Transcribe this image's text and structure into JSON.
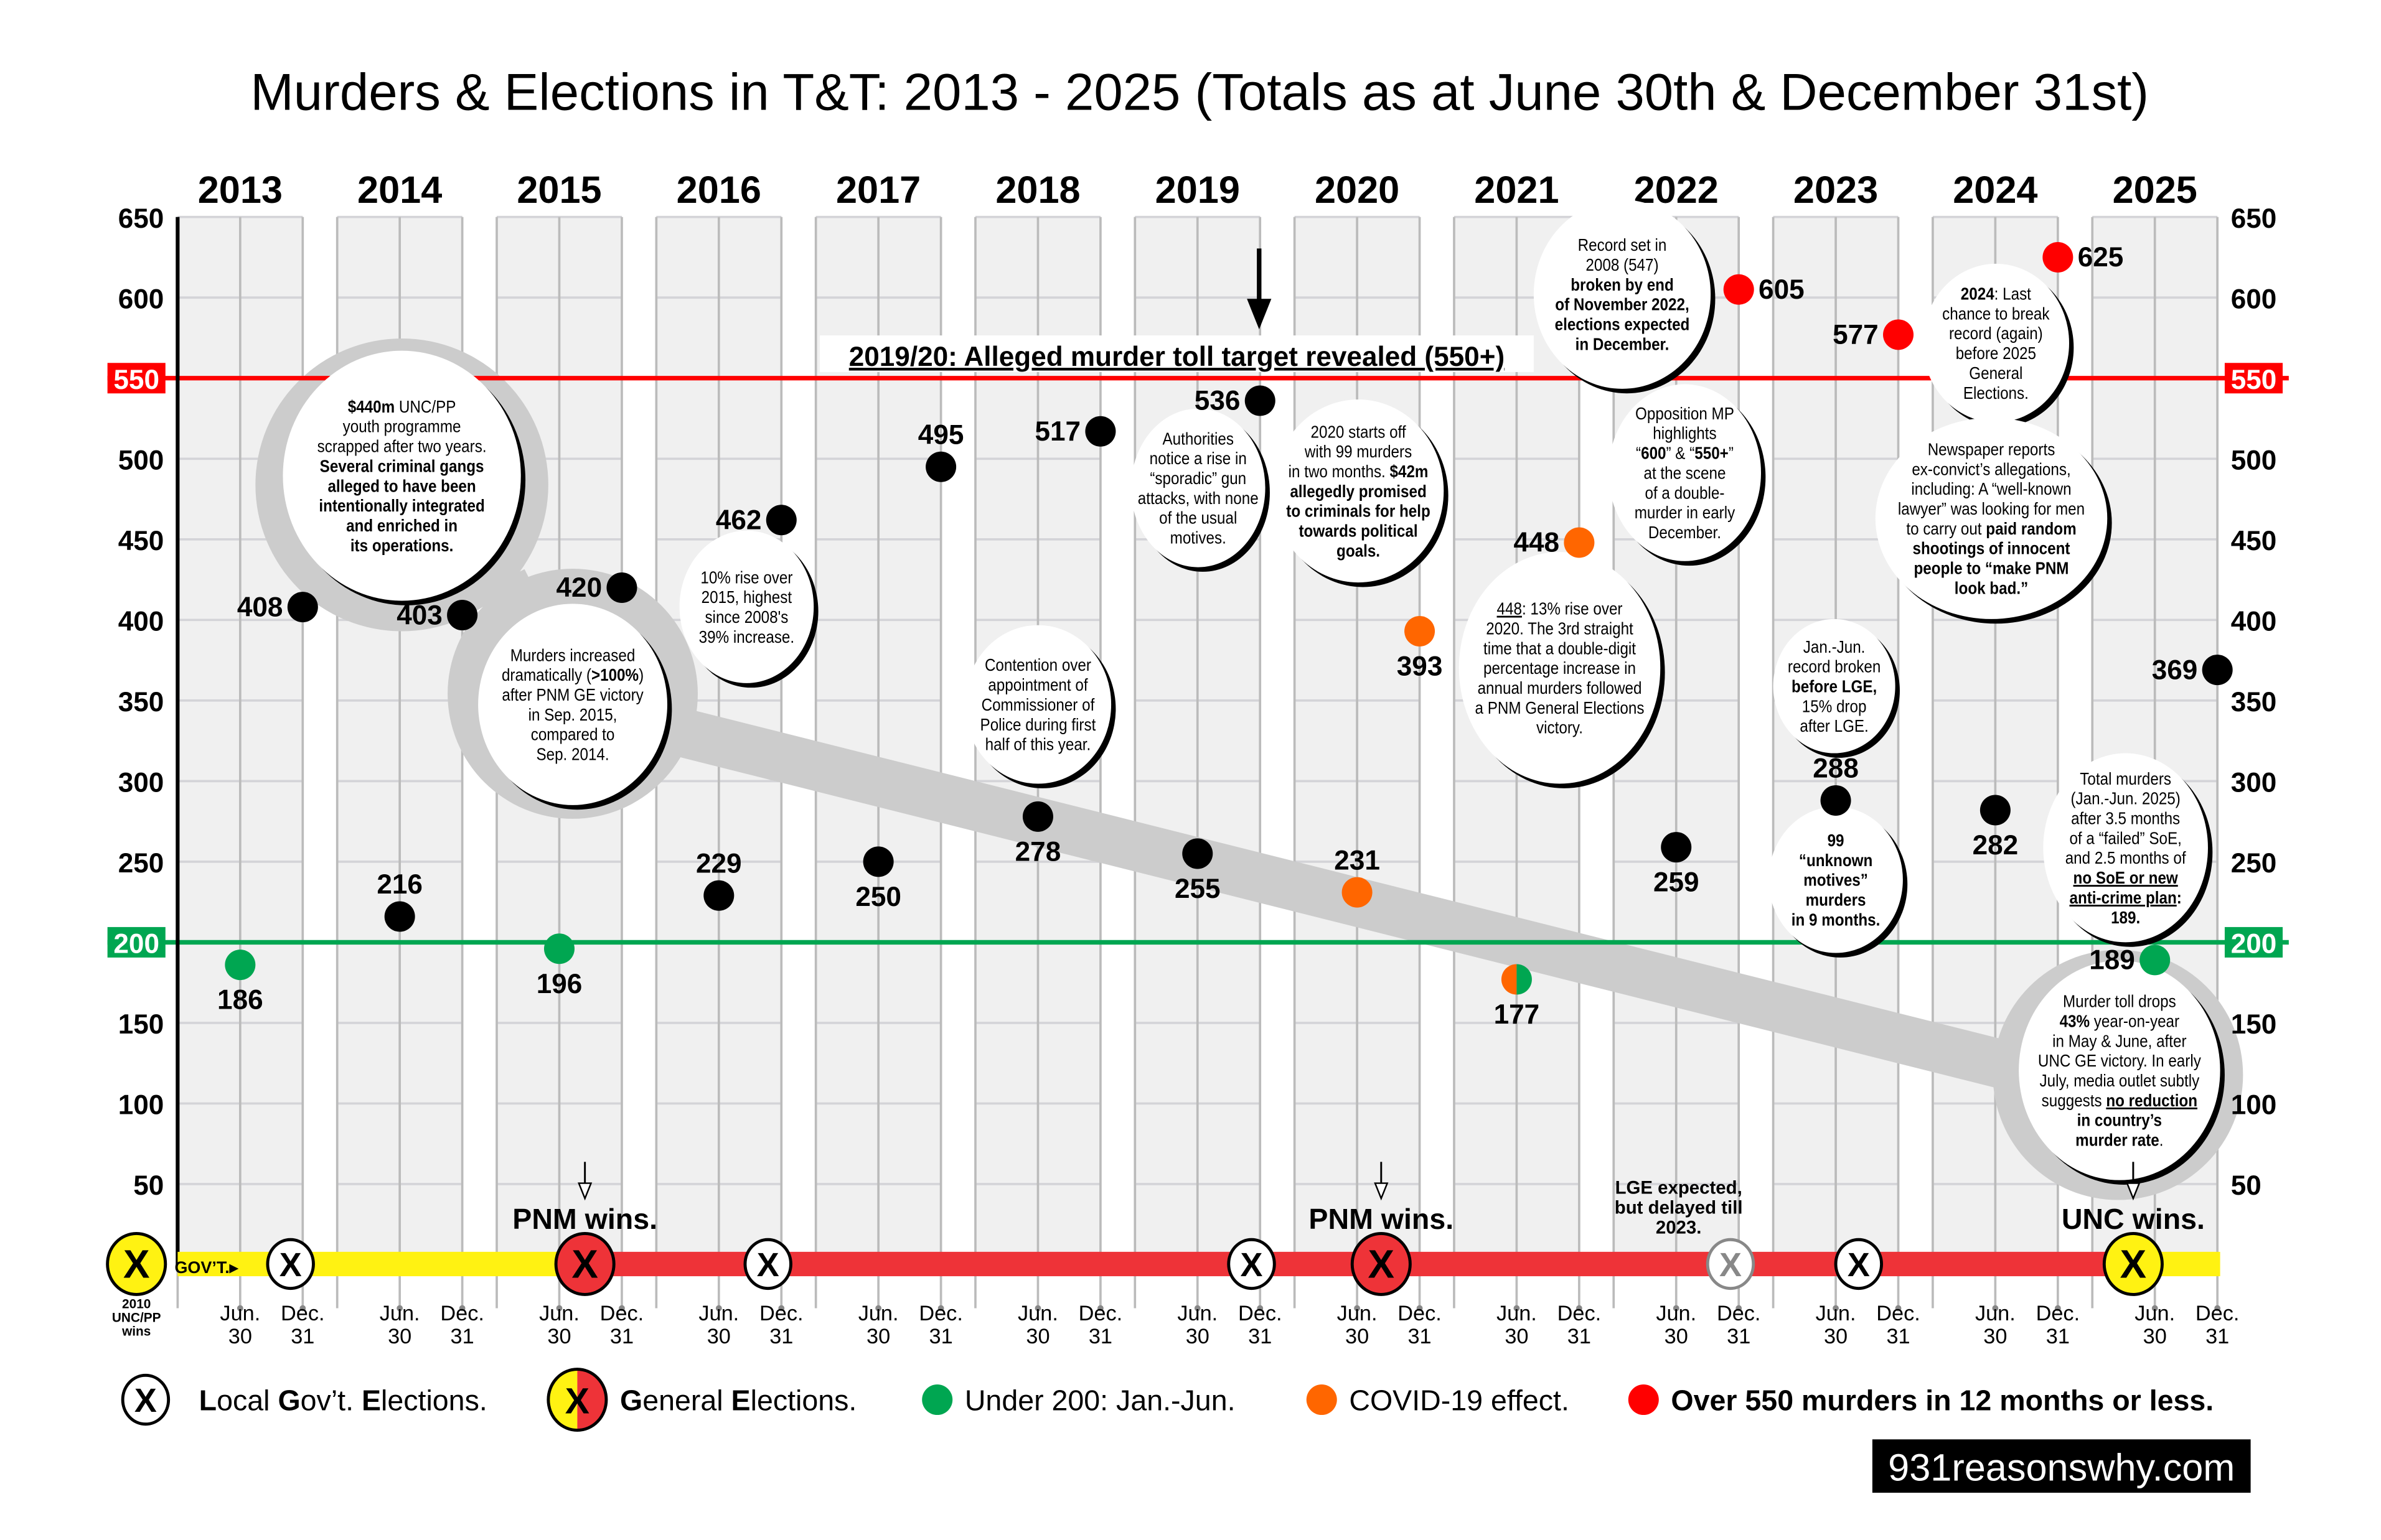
{
  "title": "Murders & Elections in T&T:  2013 - 2025 (Totals as at June 30th & December 31st)",
  "years": [
    "2013",
    "2014",
    "2015",
    "2016",
    "2017",
    "2018",
    "2019",
    "2020",
    "2021",
    "2022",
    "2023",
    "2024",
    "2025"
  ],
  "x_tick_labels": {
    "jun": [
      "Jun.",
      "30"
    ],
    "dec": [
      "Dec.",
      "31"
    ]
  },
  "colors": {
    "normal": "#000000",
    "under_200": "#00a651",
    "covid": "#ff6600",
    "over_550": "#ff0000",
    "pnm_red": "#ee3338",
    "unc_yellow": "#fff212",
    "grid_band": "#f0f0f0",
    "ring_gray": "#cccccc"
  },
  "chart_data": {
    "type": "scatter",
    "title": "Murders & Elections in T&T:  2013 - 2025 (Totals as at June 30th & December 31st)",
    "y_range": [
      0,
      650
    ],
    "y_ticks": [
      50,
      100,
      150,
      200,
      250,
      300,
      350,
      400,
      450,
      500,
      550,
      600,
      650
    ],
    "grid": true,
    "reference_lines": [
      {
        "value": 550,
        "label": "550",
        "color": "#ff0000"
      },
      {
        "value": 200,
        "label": "200",
        "color": "#00a651"
      }
    ],
    "points": [
      {
        "year": "2013",
        "period": "Jun. 30",
        "value": 186,
        "category": "under_200"
      },
      {
        "year": "2013",
        "period": "Dec. 31",
        "value": 408,
        "category": "normal"
      },
      {
        "year": "2014",
        "period": "Jun. 30",
        "value": 216,
        "category": "normal"
      },
      {
        "year": "2014",
        "period": "Dec. 31",
        "value": 403,
        "category": "normal"
      },
      {
        "year": "2015",
        "period": "Jun. 30",
        "value": 196,
        "category": "under_200"
      },
      {
        "year": "2015",
        "period": "Dec. 31",
        "value": 420,
        "category": "normal"
      },
      {
        "year": "2016",
        "period": "Jun. 30",
        "value": 229,
        "category": "normal"
      },
      {
        "year": "2016",
        "period": "Dec. 31",
        "value": 462,
        "category": "normal"
      },
      {
        "year": "2017",
        "period": "Jun. 30",
        "value": 250,
        "category": "normal"
      },
      {
        "year": "2017",
        "period": "Dec. 31",
        "value": 495,
        "category": "normal"
      },
      {
        "year": "2018",
        "period": "Jun. 30",
        "value": 278,
        "category": "normal"
      },
      {
        "year": "2018",
        "period": "Dec. 31",
        "value": 517,
        "category": "normal"
      },
      {
        "year": "2019",
        "period": "Jun. 30",
        "value": 255,
        "category": "normal"
      },
      {
        "year": "2019",
        "period": "Dec. 31",
        "value": 536,
        "category": "normal"
      },
      {
        "year": "2020",
        "period": "Jun. 30",
        "value": 231,
        "category": "covid"
      },
      {
        "year": "2020",
        "period": "Dec. 31",
        "value": 393,
        "category": "covid"
      },
      {
        "year": "2021",
        "period": "Jun. 30",
        "value": 177,
        "category": "under_200_covid"
      },
      {
        "year": "2021",
        "period": "Dec. 31",
        "value": 448,
        "category": "covid"
      },
      {
        "year": "2022",
        "period": "Jun. 30",
        "value": 259,
        "category": "normal"
      },
      {
        "year": "2022",
        "period": "Dec. 31",
        "value": 605,
        "category": "over_550"
      },
      {
        "year": "2023",
        "period": "Jun. 30",
        "value": 288,
        "category": "normal"
      },
      {
        "year": "2023",
        "period": "Dec. 31",
        "value": 577,
        "category": "over_550"
      },
      {
        "year": "2024",
        "period": "Jun. 30",
        "value": 282,
        "category": "normal"
      },
      {
        "year": "2024",
        "period": "Dec. 31",
        "value": 625,
        "category": "over_550"
      },
      {
        "year": "2025",
        "period": "Jun. 30",
        "value": 189,
        "category": "under_200"
      },
      {
        "year": "2025",
        "period": "Dec. 31",
        "value": 369,
        "category": "normal"
      }
    ]
  },
  "banner": "2019/20: Alleged murder toll target revealed (550+)",
  "annotations": [
    {
      "lines": [
        [
          {
            "t": "$440m",
            "b": 1
          },
          {
            "t": " UNC/PP"
          }
        ],
        [
          {
            "t": "youth programme"
          }
        ],
        [
          {
            "t": "scrapped after two years."
          }
        ],
        [
          {
            "t": "Several criminal gangs",
            "b": 1
          }
        ],
        [
          {
            "t": "alleged to have been",
            "b": 1
          }
        ],
        [
          {
            "t": "intentionally integrated",
            "b": 1
          }
        ],
        [
          {
            "t": "and enriched in",
            "b": 1
          }
        ],
        [
          {
            "t": "its operations.",
            "b": 1
          }
        ]
      ]
    },
    {
      "lines": [
        [
          {
            "t": "Murders increased"
          }
        ],
        [
          {
            "t": "dramatically ("
          },
          {
            "t": ">100%",
            "b": 1
          },
          {
            "t": ")"
          }
        ],
        [
          {
            "t": "after PNM GE victory"
          }
        ],
        [
          {
            "t": "in Sep. 2015,"
          }
        ],
        [
          {
            "t": "compared to"
          }
        ],
        [
          {
            "t": "Sep. 2014."
          }
        ]
      ]
    },
    {
      "lines": [
        [
          {
            "t": "10% rise over"
          }
        ],
        [
          {
            "t": "2015, highest"
          }
        ],
        [
          {
            "t": "since 2008's"
          }
        ],
        [
          {
            "t": "39% increase."
          }
        ]
      ]
    },
    {
      "lines": [
        [
          {
            "t": "Contention over"
          }
        ],
        [
          {
            "t": "appointment of"
          }
        ],
        [
          {
            "t": "Commissioner of"
          }
        ],
        [
          {
            "t": "Police during first"
          }
        ],
        [
          {
            "t": "half of this year."
          }
        ]
      ]
    },
    {
      "lines": [
        [
          {
            "t": "Authorities"
          }
        ],
        [
          {
            "t": "notice a rise in"
          }
        ],
        [
          {
            "t": "“sporadic” gun"
          }
        ],
        [
          {
            "t": "attacks, with none"
          }
        ],
        [
          {
            "t": "of the usual"
          }
        ],
        [
          {
            "t": "motives."
          }
        ]
      ]
    },
    {
      "lines": [
        [
          {
            "t": "2020 starts off"
          }
        ],
        [
          {
            "t": "with 99 murders"
          }
        ],
        [
          {
            "t": "in two months. "
          },
          {
            "t": "$42m",
            "b": 1
          }
        ],
        [
          {
            "t": "allegedly promised",
            "b": 1
          }
        ],
        [
          {
            "t": "to criminals for help",
            "b": 1
          }
        ],
        [
          {
            "t": "towards political",
            "b": 1
          }
        ],
        [
          {
            "t": "goals.",
            "b": 1
          }
        ]
      ]
    },
    {
      "lines": [
        [
          {
            "t": "448",
            "u": 1
          },
          {
            "t": ": 13% rise over"
          }
        ],
        [
          {
            "t": "2020. The 3rd straight"
          }
        ],
        [
          {
            "t": "time that a double-digit"
          }
        ],
        [
          {
            "t": "percentage increase in"
          }
        ],
        [
          {
            "t": "annual murders followed"
          }
        ],
        [
          {
            "t": "a PNM General Elections"
          }
        ],
        [
          {
            "t": "victory."
          }
        ]
      ]
    },
    {
      "lines": [
        [
          {
            "t": "Record set in"
          }
        ],
        [
          {
            "t": "2008 (547)"
          }
        ],
        [
          {
            "t": "broken by end",
            "b": 1
          }
        ],
        [
          {
            "t": "of November 2022,",
            "b": 1
          }
        ],
        [
          {
            "t": "elections expected",
            "b": 1
          }
        ],
        [
          {
            "t": "in December.",
            "b": 1
          }
        ]
      ]
    },
    {
      "lines": [
        [
          {
            "t": "Opposition MP"
          }
        ],
        [
          {
            "t": "highlights"
          }
        ],
        [
          {
            "t": "“"
          },
          {
            "t": "600",
            "b": 1
          },
          {
            "t": "” & “"
          },
          {
            "t": "550+",
            "b": 1
          },
          {
            "t": "”"
          }
        ],
        [
          {
            "t": "at the scene"
          }
        ],
        [
          {
            "t": "of a double-"
          }
        ],
        [
          {
            "t": "murder in early"
          }
        ],
        [
          {
            "t": "December."
          }
        ]
      ]
    },
    {
      "lines": [
        [
          {
            "t": "2024",
            "b": 1
          },
          {
            "t": ": Last"
          }
        ],
        [
          {
            "t": "chance to break"
          }
        ],
        [
          {
            "t": "record (again)"
          }
        ],
        [
          {
            "t": "before 2025"
          }
        ],
        [
          {
            "t": "General"
          }
        ],
        [
          {
            "t": "Elections."
          }
        ]
      ]
    },
    {
      "lines": [
        [
          {
            "t": "Newspaper reports"
          }
        ],
        [
          {
            "t": "ex-convict’s allegations,"
          }
        ],
        [
          {
            "t": "including: A “well-known"
          }
        ],
        [
          {
            "t": "lawyer” was looking for men"
          }
        ],
        [
          {
            "t": "to carry out "
          },
          {
            "t": "paid random",
            "b": 1
          }
        ],
        [
          {
            "t": "shootings of innocent",
            "b": 1
          }
        ],
        [
          {
            "t": "people to “make PNM",
            "b": 1
          }
        ],
        [
          {
            "t": "look bad.”",
            "b": 1
          }
        ]
      ]
    },
    {
      "lines": [
        [
          {
            "t": "Jan.-Jun."
          }
        ],
        [
          {
            "t": "record broken"
          }
        ],
        [
          {
            "t": "before LGE,",
            "b": 1
          }
        ],
        [
          {
            "t": "15% drop"
          }
        ],
        [
          {
            "t": "after LGE."
          }
        ]
      ]
    },
    {
      "lines": [
        [
          {
            "t": "99",
            "b": 1
          }
        ],
        [
          {
            "t": "“unknown",
            "b": 1
          }
        ],
        [
          {
            "t": "motives”",
            "b": 1
          }
        ],
        [
          {
            "t": "murders",
            "b": 1
          }
        ],
        [
          {
            "t": "in 9 months.",
            "b": 1
          }
        ]
      ]
    },
    {
      "lines": [
        [
          {
            "t": "Total murders"
          }
        ],
        [
          {
            "t": "(Jan.-Jun. 2025)"
          }
        ],
        [
          {
            "t": "after 3.5 months"
          }
        ],
        [
          {
            "t": "of a “failed” SoE,"
          }
        ],
        [
          {
            "t": "and 2.5 months of"
          }
        ],
        [
          {
            "t": "no SoE or new",
            "b": 1,
            "u": 1
          }
        ],
        [
          {
            "t": "anti-crime plan",
            "b": 1,
            "u": 1
          },
          {
            "t": ":",
            "b": 1
          }
        ],
        [
          {
            "t": "189.",
            "b": 1
          }
        ]
      ]
    },
    {
      "lines": [
        [
          {
            "t": "Murder toll drops"
          }
        ],
        [
          {
            "t": "43%",
            "b": 1
          },
          {
            "t": " year-on-year"
          }
        ],
        [
          {
            "t": "in May & June, after"
          }
        ],
        [
          {
            "t": "UNC GE victory. In early"
          }
        ],
        [
          {
            "t": "July, media outlet subtly"
          }
        ],
        [
          {
            "t": "suggests "
          },
          {
            "t": "no reduction",
            "b": 1,
            "u": 1
          }
        ],
        [
          {
            "t": "in country’s",
            "b": 1
          }
        ],
        [
          {
            "t": "murder rate",
            "b": 1
          },
          {
            "t": "."
          }
        ]
      ]
    }
  ],
  "government": {
    "label": "GOV’T.",
    "start_note": [
      "2010",
      "UNC/PP",
      "wins"
    ],
    "periods": [
      {
        "party": "UNC/PP",
        "color": "#fff212"
      },
      {
        "party": "PNM",
        "color": "#ee3338"
      },
      {
        "party": "UNC",
        "color": "#fff212"
      }
    ],
    "elections": [
      {
        "type": "GE",
        "color": "#fff212",
        "mark": "X"
      },
      {
        "type": "LGE",
        "color": "#ffffff",
        "mark": "X"
      },
      {
        "type": "GE",
        "color": "#ee3338",
        "mark": "X"
      },
      {
        "type": "LGE",
        "color": "#ffffff",
        "mark": "X"
      },
      {
        "type": "LGE",
        "color": "#ffffff",
        "mark": "X"
      },
      {
        "type": "GE",
        "color": "#ee3338",
        "mark": "X"
      },
      {
        "type": "LGE",
        "color": "#ffffff",
        "mark": "X",
        "faded": true
      },
      {
        "type": "LGE",
        "color": "#ffffff",
        "mark": "X"
      },
      {
        "type": "GE",
        "color": "#fff212",
        "mark": "X"
      }
    ],
    "wins_labels": [
      "PNM wins.",
      "PNM wins.",
      "UNC wins."
    ],
    "lge_note": [
      "LGE expected,",
      "but delayed till",
      "2023."
    ]
  },
  "legend": [
    {
      "kind": "lge",
      "segments": [
        {
          "t": "L",
          "b": 1
        },
        {
          "t": "ocal "
        },
        {
          "t": "G",
          "b": 1
        },
        {
          "t": "ov’t. "
        },
        {
          "t": "E",
          "b": 1
        },
        {
          "t": "lections."
        }
      ]
    },
    {
      "kind": "ge",
      "segments": [
        {
          "t": "G",
          "b": 1
        },
        {
          "t": "eneral "
        },
        {
          "t": "E",
          "b": 1
        },
        {
          "t": "lections."
        }
      ]
    },
    {
      "kind": "dot",
      "color": "#00a651",
      "segments": [
        {
          "t": "Under 200: Jan.-Jun."
        }
      ]
    },
    {
      "kind": "dot",
      "color": "#ff6600",
      "segments": [
        {
          "t": "COVID-19 effect."
        }
      ]
    },
    {
      "kind": "dot",
      "color": "#ff0000",
      "segments": [
        {
          "t": "Over 550 murders in 12 months or less.",
          "b": 1
        }
      ]
    }
  ],
  "website": "931reasonswhy.com"
}
